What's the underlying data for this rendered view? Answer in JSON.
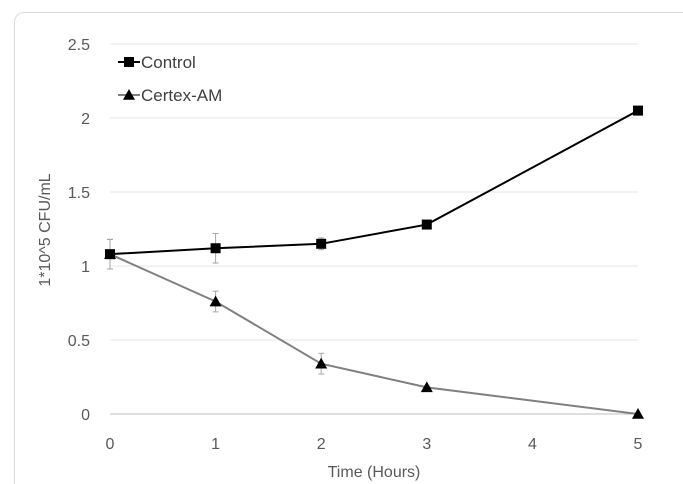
{
  "chart_data": {
    "type": "line",
    "title": "",
    "xlabel": "Time (Hours)",
    "ylabel": "1*10^5 CFU/mL",
    "x": [
      0,
      1,
      2,
      3,
      4,
      5
    ],
    "x_tick_labels": [
      "0",
      "1",
      "2",
      "3",
      "4",
      "5"
    ],
    "y_tick_labels": [
      "0",
      "0.5",
      "1",
      "1.5",
      "2",
      "2.5"
    ],
    "xlim": [
      0,
      5
    ],
    "ylim": [
      0,
      2.5
    ],
    "grid": "horizontal",
    "legend_position": "top-left",
    "series": [
      {
        "name": "Control",
        "marker": "square",
        "color": "#000000",
        "points": [
          {
            "x": 0,
            "y": 1.08,
            "err": 0.1
          },
          {
            "x": 1,
            "y": 1.12,
            "err": 0.1
          },
          {
            "x": 2,
            "y": 1.15,
            "err": 0.04
          },
          {
            "x": 3,
            "y": 1.28,
            "err": 0.02
          },
          {
            "x": 5,
            "y": 2.05,
            "err": 0.02
          }
        ]
      },
      {
        "name": "Certex-AM",
        "marker": "triangle",
        "color": "#808080",
        "points": [
          {
            "x": 0,
            "y": 1.08,
            "err": 0.1
          },
          {
            "x": 1,
            "y": 0.76,
            "err": 0.07
          },
          {
            "x": 2,
            "y": 0.34,
            "err": 0.07
          },
          {
            "x": 3,
            "y": 0.18,
            "err": 0.01
          },
          {
            "x": 5,
            "y": 0.0,
            "err": 0.0
          }
        ]
      }
    ]
  }
}
